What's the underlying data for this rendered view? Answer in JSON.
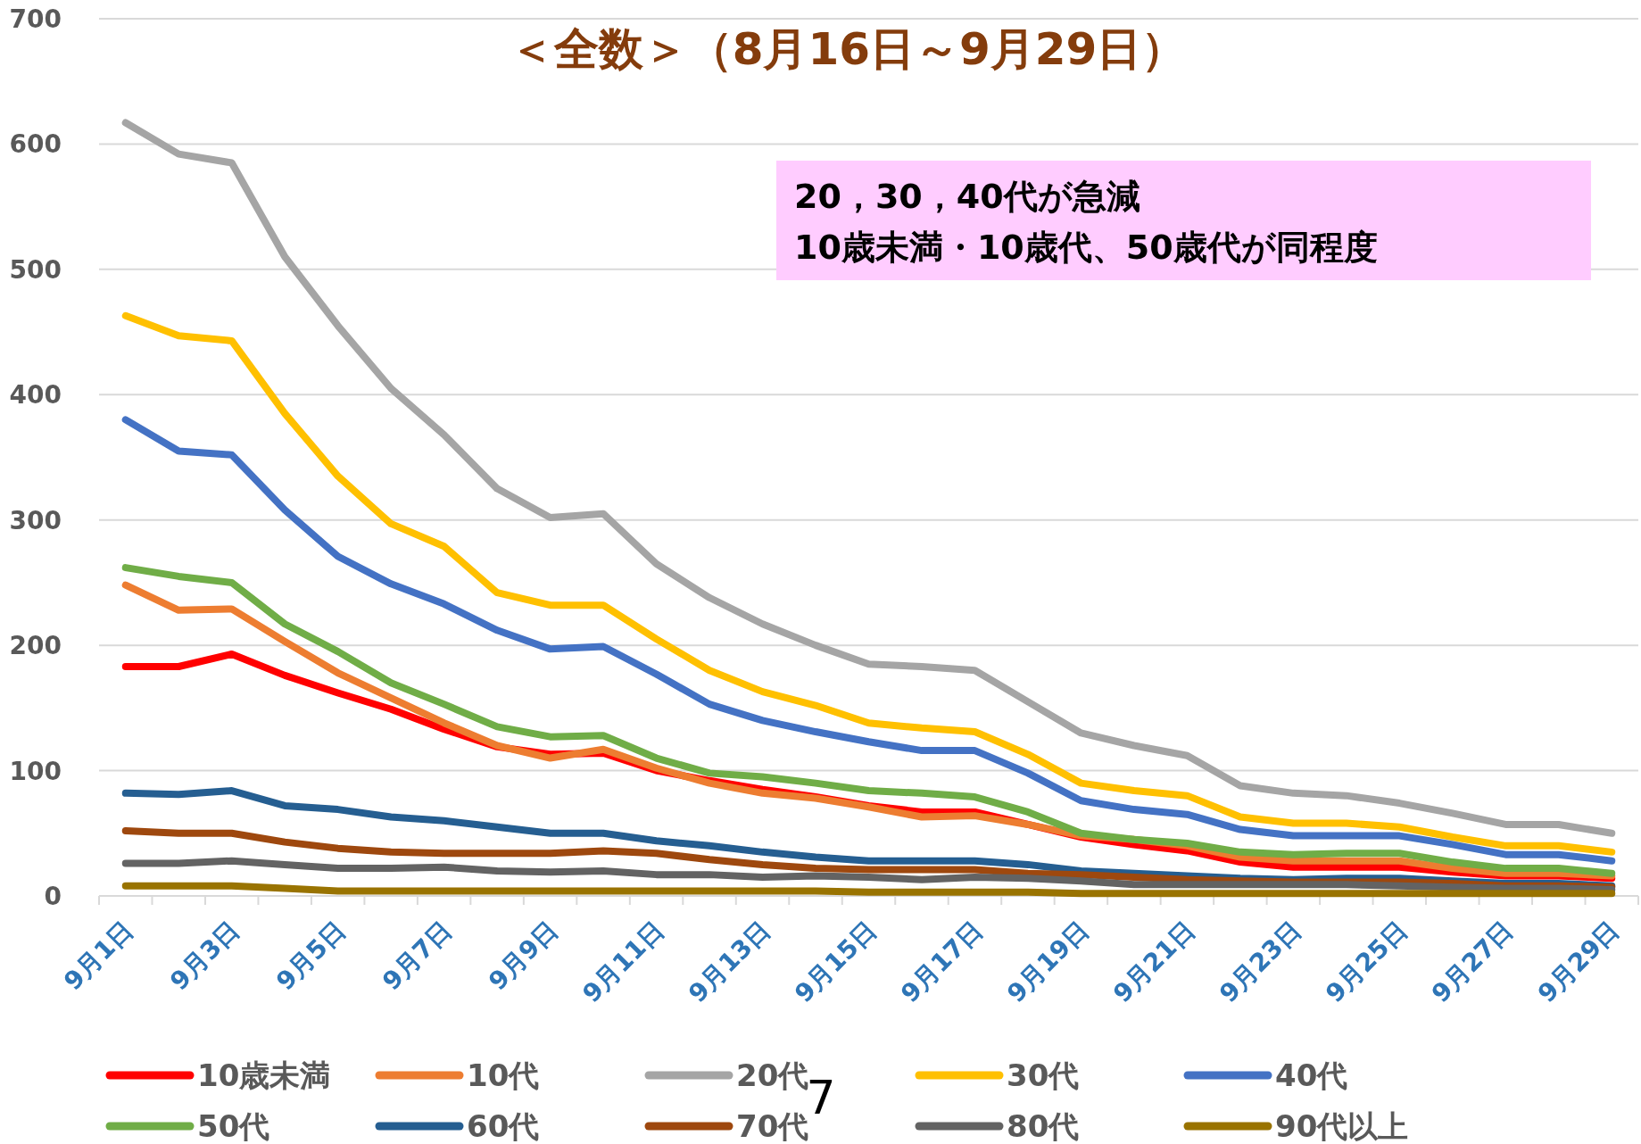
{
  "chart_data": {
    "type": "line",
    "title": "＜全数＞（8月16日～9月29日）",
    "categories": [
      "9月1日",
      null,
      "9月3日",
      null,
      "9月5日",
      null,
      "9月7日",
      null,
      "9月9日",
      null,
      "9月11日",
      null,
      "9月13日",
      null,
      "9月15日",
      null,
      "9月17日",
      null,
      "9月19日",
      null,
      "9月21日",
      null,
      "9月23日",
      null,
      "9月25日",
      null,
      "9月27日",
      null,
      "9月29日"
    ],
    "ylim": [
      0,
      700
    ],
    "yticks": [
      0,
      100,
      200,
      300,
      400,
      500,
      600,
      700
    ],
    "grid": "y",
    "legend": "bottom",
    "annotations": [
      "20，30，40代が急減",
      "10歳未満・10歳代、50歳代が同程度",
      "7"
    ],
    "series": [
      {
        "name": "10歳未満",
        "color": "#ff0000",
        "values": [
          183,
          183,
          193,
          176,
          162,
          149,
          133,
          119,
          113,
          114,
          100,
          92,
          85,
          79,
          72,
          67,
          67,
          57,
          47,
          41,
          36,
          27,
          23,
          23,
          23,
          19,
          16,
          16,
          14
        ]
      },
      {
        "name": "10代",
        "color": "#ed7d31",
        "values": [
          248,
          228,
          229,
          203,
          178,
          158,
          138,
          120,
          110,
          117,
          102,
          90,
          82,
          78,
          71,
          63,
          64,
          57,
          48,
          45,
          40,
          31,
          28,
          28,
          28,
          22,
          18,
          18,
          16
        ]
      },
      {
        "name": "20代",
        "color": "#a5a5a5",
        "values": [
          617,
          592,
          585,
          510,
          455,
          405,
          368,
          325,
          302,
          305,
          265,
          238,
          217,
          200,
          185,
          183,
          180,
          155,
          130,
          120,
          112,
          88,
          82,
          80,
          74,
          66,
          57,
          57,
          50
        ]
      },
      {
        "name": "30代",
        "color": "#ffc000",
        "values": [
          463,
          447,
          443,
          385,
          335,
          297,
          279,
          242,
          232,
          232,
          205,
          180,
          163,
          152,
          138,
          134,
          131,
          113,
          90,
          84,
          80,
          63,
          58,
          58,
          55,
          47,
          40,
          40,
          35
        ]
      },
      {
        "name": "40代",
        "color": "#4472c4",
        "values": [
          380,
          355,
          352,
          308,
          271,
          249,
          233,
          212,
          197,
          199,
          177,
          153,
          140,
          131,
          123,
          116,
          116,
          98,
          76,
          69,
          65,
          53,
          48,
          48,
          48,
          41,
          33,
          33,
          28
        ]
      },
      {
        "name": "50代",
        "color": "#70ad47",
        "values": [
          262,
          255,
          250,
          217,
          195,
          170,
          153,
          135,
          127,
          128,
          110,
          98,
          95,
          90,
          84,
          82,
          79,
          67,
          50,
          45,
          42,
          35,
          33,
          34,
          34,
          27,
          22,
          22,
          18
        ]
      },
      {
        "name": "60代",
        "color": "#255e91",
        "values": [
          82,
          81,
          84,
          72,
          69,
          63,
          60,
          55,
          50,
          50,
          44,
          40,
          35,
          31,
          28,
          28,
          28,
          25,
          20,
          18,
          16,
          14,
          13,
          14,
          14,
          12,
          10,
          10,
          8
        ]
      },
      {
        "name": "70代",
        "color": "#9e480e",
        "values": [
          52,
          50,
          50,
          43,
          38,
          35,
          34,
          34,
          34,
          36,
          34,
          29,
          25,
          22,
          21,
          21,
          21,
          18,
          17,
          15,
          13,
          12,
          11,
          11,
          11,
          10,
          8,
          8,
          7
        ]
      },
      {
        "name": "80代",
        "color": "#636363",
        "values": [
          26,
          26,
          28,
          25,
          22,
          22,
          23,
          20,
          19,
          20,
          17,
          17,
          15,
          16,
          15,
          13,
          15,
          14,
          12,
          9,
          9,
          9,
          9,
          9,
          8,
          7,
          6,
          6,
          5
        ]
      },
      {
        "name": "90代以上",
        "color": "#997300",
        "values": [
          8,
          8,
          8,
          6,
          4,
          4,
          4,
          4,
          4,
          4,
          4,
          4,
          4,
          4,
          3,
          3,
          3,
          3,
          2,
          2,
          2,
          2,
          2,
          2,
          2,
          2,
          2,
          2,
          2
        ]
      }
    ]
  }
}
